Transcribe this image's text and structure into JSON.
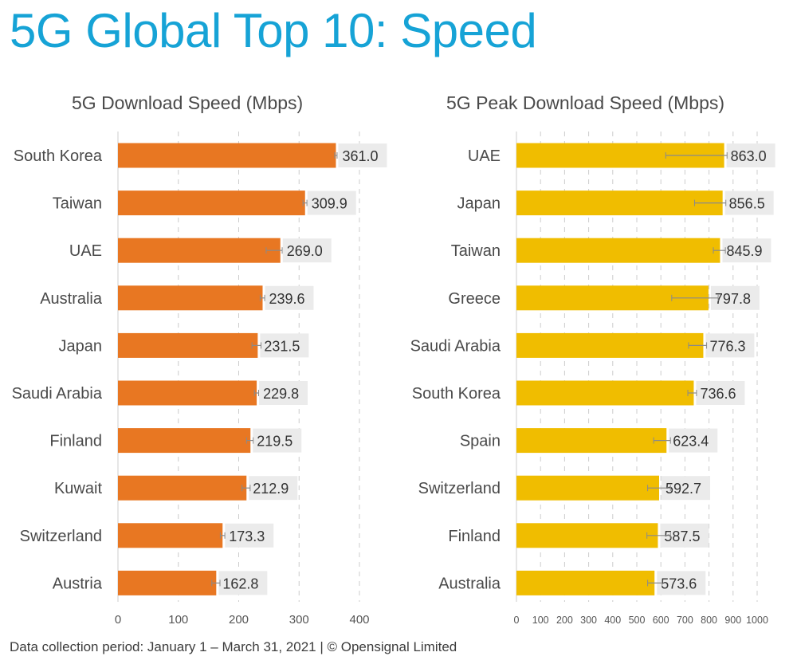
{
  "page": {
    "title": "5G Global Top 10: Speed",
    "footer": "Data collection period: January 1 – March 31, 2021  |  © Opensignal Limited"
  },
  "colors": {
    "title": "#16a3d6",
    "download_bar": "#e87722",
    "peak_bar": "#f0bd00",
    "label_bg": "#ebebeb",
    "error_bar": "#8a8a8a",
    "grid": "#cccccc"
  },
  "chart_data": [
    {
      "type": "bar",
      "orientation": "horizontal",
      "title": "5G Download Speed (Mbps)",
      "xlabel": "",
      "ylabel": "",
      "xlim": [
        0,
        400
      ],
      "xticks": [
        0,
        100,
        200,
        300,
        400
      ],
      "grid": "vertical-dashed",
      "categories": [
        "South Korea",
        "Taiwan",
        "UAE",
        "Australia",
        "Japan",
        "Saudi Arabia",
        "Finland",
        "Kuwait",
        "Switzerland",
        "Austria"
      ],
      "values": [
        361.0,
        309.9,
        269.0,
        239.6,
        231.5,
        229.8,
        219.5,
        212.9,
        173.3,
        162.8
      ],
      "value_labels": [
        "361.0",
        "309.9",
        "269.0",
        "239.6",
        "231.5",
        "229.8",
        "219.5",
        "212.9",
        "173.3",
        "162.8"
      ],
      "error_low": [
        359.0,
        306.5,
        245.5,
        235.5,
        222.0,
        226.0,
        213.0,
        205.5,
        169.5,
        155.5
      ],
      "error_high": [
        363.0,
        313.0,
        272.0,
        243.0,
        237.0,
        233.0,
        224.0,
        219.0,
        177.0,
        169.0
      ]
    },
    {
      "type": "bar",
      "orientation": "horizontal",
      "title": "5G Peak Download Speed (Mbps)",
      "xlabel": "",
      "ylabel": "",
      "xlim": [
        0,
        1000
      ],
      "xticks": [
        0,
        100,
        200,
        300,
        400,
        500,
        600,
        700,
        800,
        900,
        1000
      ],
      "grid": "vertical-dashed",
      "categories": [
        "UAE",
        "Japan",
        "Taiwan",
        "Greece",
        "Saudi Arabia",
        "South Korea",
        "Spain",
        "Switzerland",
        "Finland",
        "Australia"
      ],
      "values": [
        863.0,
        856.5,
        845.9,
        797.8,
        776.3,
        736.6,
        623.4,
        592.7,
        587.5,
        573.6
      ],
      "value_labels": [
        "863.0",
        "856.5",
        "845.9",
        "797.8",
        "776.3",
        "736.6",
        "623.4",
        "592.7",
        "587.5",
        "573.6"
      ],
      "error_low": [
        620.0,
        740.0,
        818.0,
        645.0,
        715.0,
        712.0,
        570.0,
        545.0,
        542.0,
        545.0
      ],
      "error_high": [
        875.0,
        870.0,
        868.0,
        838.0,
        790.0,
        748.0,
        640.0,
        640.0,
        640.0,
        605.0
      ]
    }
  ]
}
